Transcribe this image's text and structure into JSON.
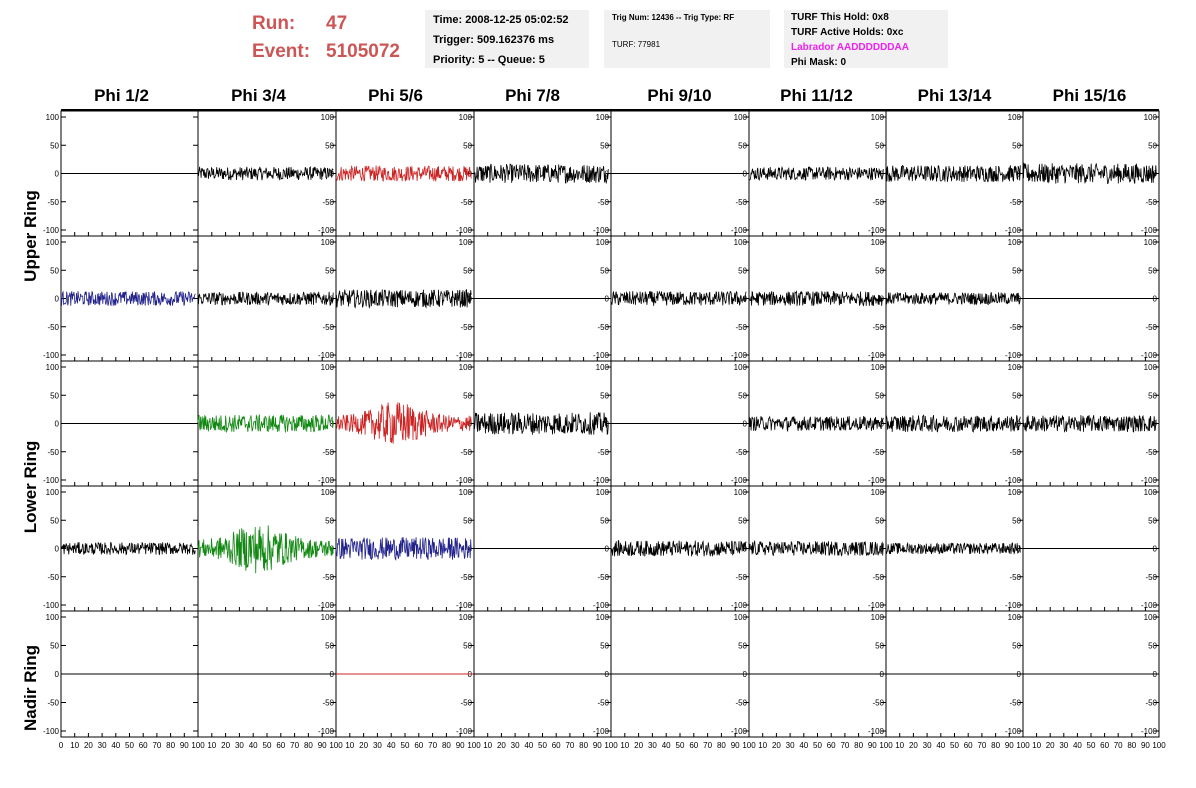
{
  "header": {
    "run_label": "Run:",
    "run_value": "47",
    "event_label": "Event:",
    "event_value": "5105072",
    "time_line": "Time: 2008-12-25 05:02:52",
    "trigger_line": "Trigger: 509.162376 ms",
    "priority_line": "Priority: 5 -- Queue: 5",
    "trig_num_line": "Trig Num: 12436 -- Trig Type: RF",
    "turf_line": "TURF: 77981",
    "turf_hold_line": "TURF This Hold: 0x8",
    "turf_active_line": "TURF Active Holds: 0xc",
    "labrador_line": "Labrador AADDDDDDAA",
    "phi_mask_line": "Phi Mask: 0"
  },
  "colors": {
    "run_text": "#cc5555",
    "labrador_text": "#ee22ee",
    "trace_black": "#000000",
    "trace_red": "#cc2222",
    "trace_blue": "#22228c",
    "trace_green": "#118811"
  },
  "chart_data": {
    "type": "line",
    "columns": [
      "Phi 1/2",
      "Phi 3/4",
      "Phi 5/6",
      "Phi 7/8",
      "Phi 9/10",
      "Phi 11/12",
      "Phi 13/14",
      "Phi 15/16"
    ],
    "rows": [
      "Upper Ring",
      "Upper Ring",
      "Lower Ring",
      "Lower Ring",
      "Nadir Ring"
    ],
    "row_labels": [
      "Upper Ring",
      "Lower Ring",
      "Nadir Ring"
    ],
    "xlim": [
      0,
      100
    ],
    "ylim": [
      -100,
      100
    ],
    "y_ticks": [
      -100,
      -50,
      0,
      50,
      100
    ],
    "x_ticks": [
      0,
      10,
      20,
      30,
      40,
      50,
      60,
      70,
      80,
      90,
      100
    ],
    "grid": false,
    "panels": [
      [
        "flat",
        "black:12",
        "red:14",
        "black:17",
        "flat",
        "black:12",
        "black:15",
        "black:18"
      ],
      [
        "blue:13",
        "black:12",
        "black:16",
        "flat",
        "black:13",
        "black:13",
        "black:11",
        "flat"
      ],
      [
        "flat",
        "green:16",
        "red:40",
        "black:20",
        "flat",
        "black:13",
        "black:15",
        "black:15"
      ],
      [
        "black:11",
        "green:45",
        "blue:20",
        "flat",
        "black:14",
        "black:13",
        "black:10",
        "flat"
      ],
      [
        "flat",
        "flat",
        "flatred",
        "flat",
        "flat",
        "flat",
        "flat",
        "flat"
      ]
    ]
  }
}
